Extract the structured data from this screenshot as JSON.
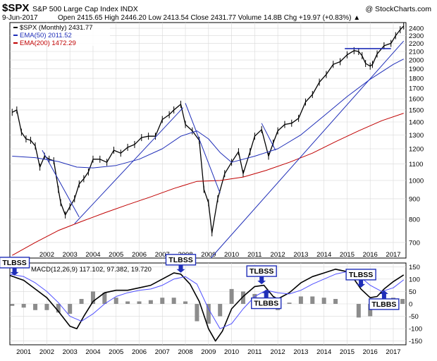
{
  "header": {
    "symbol": "$SPX",
    "name": "S&P 500 Large Cap Index INDX",
    "watermark": "@ StockCharts.com",
    "date": "9-Jun-2017",
    "quote": "Open 2415.65  High 2446.20  Low 2413.54  Close 2431.77  Volume 14.8B  Chg +19.97 (+0.83%) ▲"
  },
  "chart_data": [
    {
      "type": "line",
      "scale": "log",
      "legend": [
        {
          "label": "$SPX (Monthly) 2431.77",
          "color": "#000000"
        },
        {
          "label": "EMA(50) 2011.52",
          "color": "#1f2eb8"
        },
        {
          "label": "EMA(200) 1472.29",
          "color": "#c00000"
        }
      ],
      "legend_position": "top-left",
      "ylim": [
        640,
        2480
      ],
      "y_ticks": [
        700,
        800,
        900,
        1000,
        1100,
        1200,
        1300,
        1400,
        1500,
        1600,
        1700,
        1800,
        1900,
        2000,
        2100,
        2200,
        2300,
        2400
      ],
      "x_ticks": [
        "2002",
        "2003",
        "2004",
        "2005",
        "2006",
        "2007",
        "2008",
        "2009",
        "2010",
        "2011",
        "2012",
        "2013",
        "2014",
        "2015",
        "2016",
        "2017"
      ],
      "series": [
        {
          "key": "price",
          "color": "#000000",
          "x": [
            2000.5,
            2000.7,
            2000.9,
            2001.1,
            2001.3,
            2001.5,
            2001.7,
            2001.9,
            2002.1,
            2002.3,
            2002.5,
            2002.6,
            2002.8,
            2003.0,
            2003.2,
            2003.4,
            2003.6,
            2003.8,
            2004.0,
            2004.3,
            2004.6,
            2004.9,
            2005.2,
            2005.5,
            2005.8,
            2006.1,
            2006.4,
            2006.7,
            2007.0,
            2007.3,
            2007.5,
            2007.8,
            2008.0,
            2008.3,
            2008.6,
            2008.8,
            2009.0,
            2009.15,
            2009.4,
            2009.7,
            2010.0,
            2010.3,
            2010.5,
            2010.8,
            2011.0,
            2011.3,
            2011.6,
            2011.8,
            2012.0,
            2012.3,
            2012.6,
            2012.9,
            2013.2,
            2013.5,
            2013.8,
            2014.1,
            2014.4,
            2014.7,
            2015.0,
            2015.3,
            2015.5,
            2015.65,
            2015.8,
            2016.0,
            2016.1,
            2016.3,
            2016.6,
            2016.9,
            2017.1,
            2017.3,
            2017.45
          ],
          "values": [
            1480,
            1500,
            1320,
            1270,
            1260,
            1220,
            1080,
            1150,
            1130,
            1120,
            950,
            880,
            820,
            860,
            900,
            980,
            1010,
            1050,
            1130,
            1130,
            1110,
            1190,
            1170,
            1210,
            1230,
            1280,
            1290,
            1290,
            1420,
            1460,
            1500,
            1550,
            1380,
            1330,
            1260,
            950,
            880,
            740,
            900,
            1040,
            1110,
            1180,
            1040,
            1180,
            1290,
            1340,
            1150,
            1240,
            1330,
            1380,
            1390,
            1430,
            1570,
            1640,
            1760,
            1840,
            1950,
            1980,
            2060,
            2110,
            2100,
            2050,
            1960,
            1930,
            1950,
            2070,
            2170,
            2200,
            2300,
            2380,
            2431
          ]
        },
        {
          "key": "ema50",
          "color": "#1f2eb8",
          "x": [
            2000.5,
            2001.5,
            2002.5,
            2003.3,
            2004.0,
            2005.0,
            2006.0,
            2007.0,
            2007.8,
            2008.5,
            2009.0,
            2009.5,
            2010.0,
            2011.0,
            2012.0,
            2013.0,
            2014.0,
            2015.0,
            2016.0,
            2017.0,
            2017.45
          ],
          "values": [
            1150,
            1140,
            1115,
            1080,
            1075,
            1090,
            1130,
            1200,
            1290,
            1330,
            1270,
            1175,
            1110,
            1150,
            1200,
            1300,
            1450,
            1620,
            1790,
            1950,
            2011
          ]
        },
        {
          "key": "ema200",
          "color": "#c00000",
          "x": [
            2000.5,
            2001.5,
            2002.5,
            2003.5,
            2004.5,
            2005.5,
            2006.5,
            2007.5,
            2008.5,
            2009.5,
            2010.5,
            2011.5,
            2012.5,
            2013.5,
            2014.5,
            2015.5,
            2016.5,
            2017.45
          ],
          "values": [
            650,
            700,
            750,
            790,
            830,
            870,
            910,
            955,
            995,
            1000,
            1020,
            1060,
            1110,
            1170,
            1250,
            1330,
            1410,
            1472
          ]
        },
        {
          "key": "trendline-1",
          "color": "#1f2eb8",
          "x": [
            2003.2,
            2007.9
          ],
          "values": [
            780,
            1520
          ]
        },
        {
          "key": "trendline-2",
          "color": "#1f2eb8",
          "x": [
            2009.1,
            2017.45
          ],
          "values": [
            640,
            2230
          ]
        },
        {
          "key": "downtrend-1",
          "color": "#1f2eb8",
          "x": [
            2001.8,
            2003.4
          ],
          "values": [
            1190,
            810
          ]
        },
        {
          "key": "downtrend-2",
          "color": "#1f2eb8",
          "x": [
            2008.0,
            2009.5
          ],
          "values": [
            1560,
            930
          ]
        },
        {
          "key": "downtrend-3",
          "color": "#1f2eb8",
          "x": [
            2011.3,
            2011.9
          ],
          "values": [
            1390,
            1190
          ]
        },
        {
          "key": "resistance",
          "color": "#1f2eb8",
          "x": [
            2014.9,
            2016.9
          ],
          "values": [
            2135,
            2135
          ]
        }
      ]
    },
    {
      "type": "line",
      "legend": [
        {
          "label": "MACD(12,26,9) 117.102, 97.382, 19.720",
          "color": "#000000"
        }
      ],
      "ylim": [
        -165,
        165
      ],
      "y_ticks": [
        -150,
        -100,
        -50,
        0,
        50,
        100,
        150
      ],
      "x_ticks": [
        "2001",
        "2002",
        "2003",
        "2004",
        "2005",
        "2006",
        "2007",
        "2008",
        "2009",
        "2010",
        "2011",
        "2012",
        "2013",
        "2014",
        "2015",
        "2016",
        "2017"
      ],
      "series": [
        {
          "key": "macd",
          "color": "#000000",
          "x": [
            2000.4,
            2001.0,
            2001.5,
            2002.0,
            2002.5,
            2003.0,
            2003.3,
            2003.6,
            2004.0,
            2004.5,
            2005.0,
            2005.5,
            2006.0,
            2006.5,
            2007.0,
            2007.5,
            2007.8,
            2008.2,
            2008.6,
            2009.0,
            2009.3,
            2009.6,
            2010.0,
            2010.5,
            2011.0,
            2011.4,
            2011.8,
            2012.0,
            2012.5,
            2013.0,
            2013.5,
            2014.0,
            2014.5,
            2015.0,
            2015.3,
            2015.6,
            2016.0,
            2016.3,
            2016.6,
            2017.0,
            2017.45
          ],
          "values": [
            115,
            95,
            60,
            25,
            -30,
            -90,
            -100,
            -50,
            10,
            45,
            55,
            55,
            65,
            75,
            100,
            125,
            120,
            80,
            10,
            -100,
            -150,
            -110,
            -20,
            30,
            70,
            75,
            30,
            20,
            45,
            85,
            110,
            125,
            140,
            130,
            100,
            60,
            25,
            30,
            60,
            90,
            117
          ]
        },
        {
          "key": "signal",
          "color": "#4d4dff",
          "x": [
            2000.4,
            2001.0,
            2001.5,
            2002.0,
            2002.5,
            2003.0,
            2003.5,
            2004.0,
            2004.5,
            2005.0,
            2005.5,
            2006.0,
            2006.5,
            2007.0,
            2007.5,
            2008.0,
            2008.5,
            2009.0,
            2009.5,
            2010.0,
            2010.5,
            2011.0,
            2011.5,
            2012.0,
            2012.5,
            2013.0,
            2013.5,
            2014.0,
            2014.5,
            2015.0,
            2015.5,
            2016.0,
            2016.5,
            2017.0,
            2017.45
          ],
          "values": [
            120,
            110,
            85,
            50,
            5,
            -50,
            -70,
            -40,
            0,
            30,
            45,
            55,
            60,
            75,
            100,
            110,
            80,
            -20,
            -100,
            -80,
            -20,
            30,
            55,
            45,
            40,
            55,
            80,
            100,
            120,
            130,
            115,
            75,
            50,
            65,
            97
          ]
        },
        {
          "key": "histogram",
          "color": "#808080",
          "x": [
            2000.5,
            2001.0,
            2001.5,
            2002.0,
            2002.5,
            2003.0,
            2003.5,
            2004.0,
            2004.5,
            2005.0,
            2005.5,
            2006.0,
            2006.5,
            2007.0,
            2007.5,
            2008.0,
            2008.5,
            2009.0,
            2009.5,
            2010.0,
            2010.5,
            2011.0,
            2011.5,
            2012.0,
            2012.5,
            2013.0,
            2013.5,
            2014.0,
            2014.5,
            2015.0,
            2015.5,
            2016.0,
            2016.5,
            2017.0,
            2017.4
          ],
          "values": [
            -8,
            -15,
            -25,
            -25,
            -35,
            -40,
            20,
            50,
            45,
            25,
            10,
            10,
            15,
            25,
            25,
            10,
            -70,
            -80,
            -50,
            60,
            50,
            40,
            20,
            -25,
            5,
            30,
            30,
            25,
            20,
            0,
            -55,
            -50,
            10,
            25,
            20
          ]
        }
      ],
      "annotations": [
        {
          "text": "TLBSS",
          "x": 2000.6
        },
        {
          "text": "TLBSS",
          "x": 2007.8
        },
        {
          "text": "TLBSS",
          "x": 2011.3
        },
        {
          "text": "TLBSS",
          "x": 2015.6
        },
        {
          "text": "TLBBS",
          "x": 2011.5
        },
        {
          "text": "TLBBS",
          "x": 2016.6
        }
      ]
    }
  ]
}
